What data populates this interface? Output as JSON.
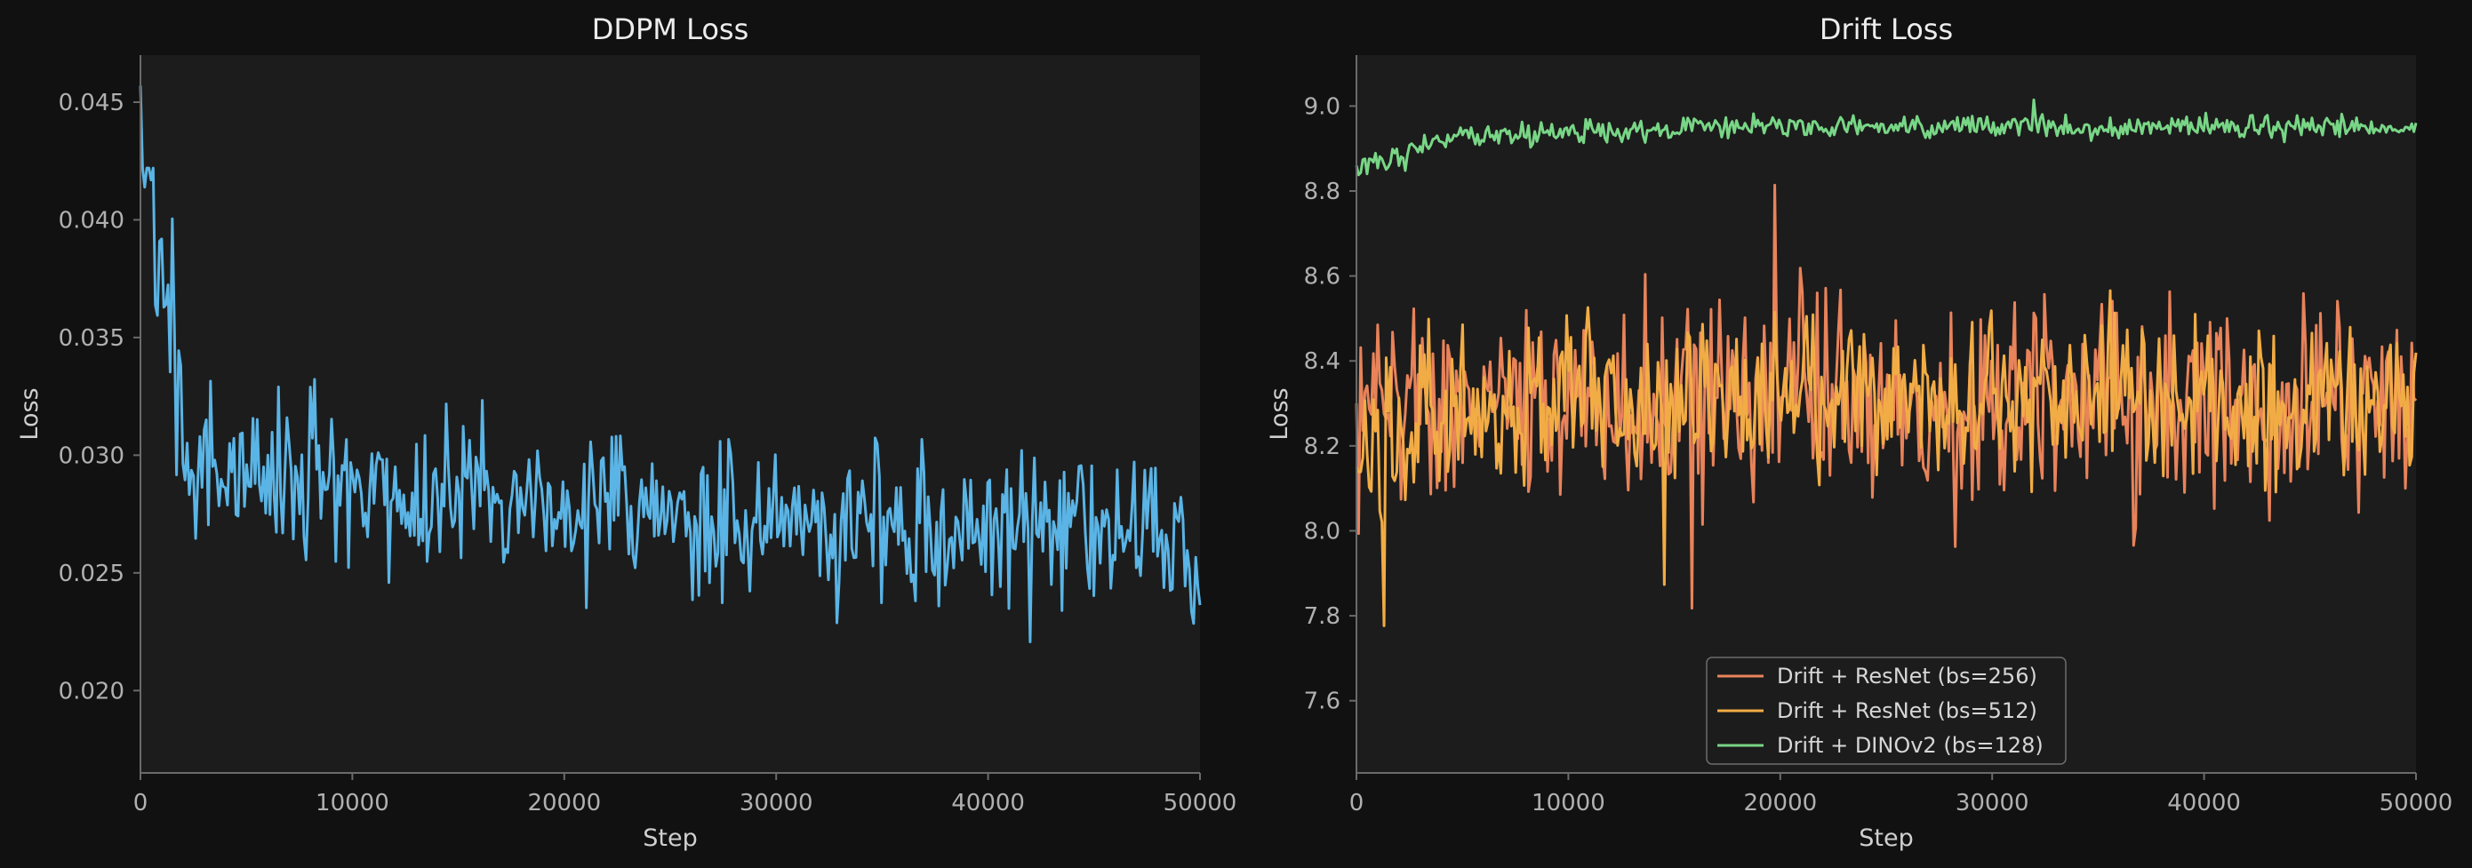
{
  "chart_data": [
    {
      "type": "line",
      "title": "DDPM Loss",
      "xlabel": "Step",
      "ylabel": "Loss",
      "xlim": [
        0,
        50000
      ],
      "ylim": [
        0.0165,
        0.047
      ],
      "xticks": [
        "0",
        "10000",
        "20000",
        "30000",
        "40000",
        "50000"
      ],
      "yticks": [
        "0.020",
        "0.025",
        "0.030",
        "0.035",
        "0.040",
        "0.045"
      ],
      "grid": false,
      "legend": "none",
      "series": [
        {
          "color": "#5ab4e5",
          "x": [
            0,
            2000,
            4000,
            6000,
            8000,
            10000,
            12000,
            14000,
            16000,
            18000,
            20000,
            22000,
            24000,
            26000,
            28000,
            30000,
            32000,
            34000,
            36000,
            38000,
            40000,
            42000,
            44000,
            46000,
            48000,
            50000
          ],
          "y": [
            0.0457,
            0.0295,
            0.0297,
            0.0289,
            0.0291,
            0.0287,
            0.0285,
            0.0283,
            0.0282,
            0.0281,
            0.0278,
            0.0276,
            0.0275,
            0.0274,
            0.0272,
            0.0271,
            0.0271,
            0.027,
            0.0268,
            0.0267,
            0.0266,
            0.0266,
            0.0265,
            0.0264,
            0.0264,
            0.0262
          ],
          "noise": 0.0035,
          "min": 0.0179,
          "max": 0.0422
        }
      ]
    },
    {
      "type": "line",
      "title": "Drift Loss",
      "xlabel": "Step",
      "ylabel": "Loss",
      "xlim": [
        0,
        50000
      ],
      "ylim": [
        7.43,
        9.12
      ],
      "xticks": [
        "0",
        "10000",
        "20000",
        "30000",
        "40000",
        "50000"
      ],
      "yticks": [
        "7.6",
        "7.8",
        "8.0",
        "8.2",
        "8.4",
        "8.6",
        "8.8",
        "9.0"
      ],
      "grid": false,
      "legend": "lower-center",
      "series": [
        {
          "name": "Drift + ResNet (bs=256)",
          "color": "#e8835a",
          "x": [
            0,
            5000,
            10000,
            15000,
            20000,
            25000,
            30000,
            35000,
            40000,
            45000,
            50000
          ],
          "y": [
            8.3,
            8.29,
            8.3,
            8.31,
            8.3,
            8.29,
            8.3,
            8.3,
            8.29,
            8.3,
            8.3
          ],
          "noise": 0.26,
          "min": 7.51,
          "max": 8.9
        },
        {
          "name": "Drift + ResNet (bs=512)",
          "color": "#f2ac45",
          "x": [
            0,
            5000,
            10000,
            15000,
            20000,
            25000,
            30000,
            35000,
            40000,
            45000,
            50000
          ],
          "y": [
            8.15,
            8.28,
            8.3,
            8.32,
            8.33,
            8.31,
            8.32,
            8.31,
            8.3,
            8.31,
            8.3
          ],
          "noise": 0.2,
          "min": 7.62,
          "max": 8.92
        },
        {
          "name": "Drift + DINOv2 (bs=128)",
          "color": "#78d686",
          "x": [
            0,
            2000,
            5000,
            10000,
            15000,
            20000,
            25000,
            30000,
            35000,
            40000,
            45000,
            50000
          ],
          "y": [
            8.86,
            8.88,
            8.93,
            8.94,
            8.95,
            8.95,
            8.95,
            8.95,
            8.95,
            8.95,
            8.95,
            8.95
          ],
          "noise": 0.028,
          "min": 8.78,
          "max": 9.04
        }
      ]
    }
  ]
}
